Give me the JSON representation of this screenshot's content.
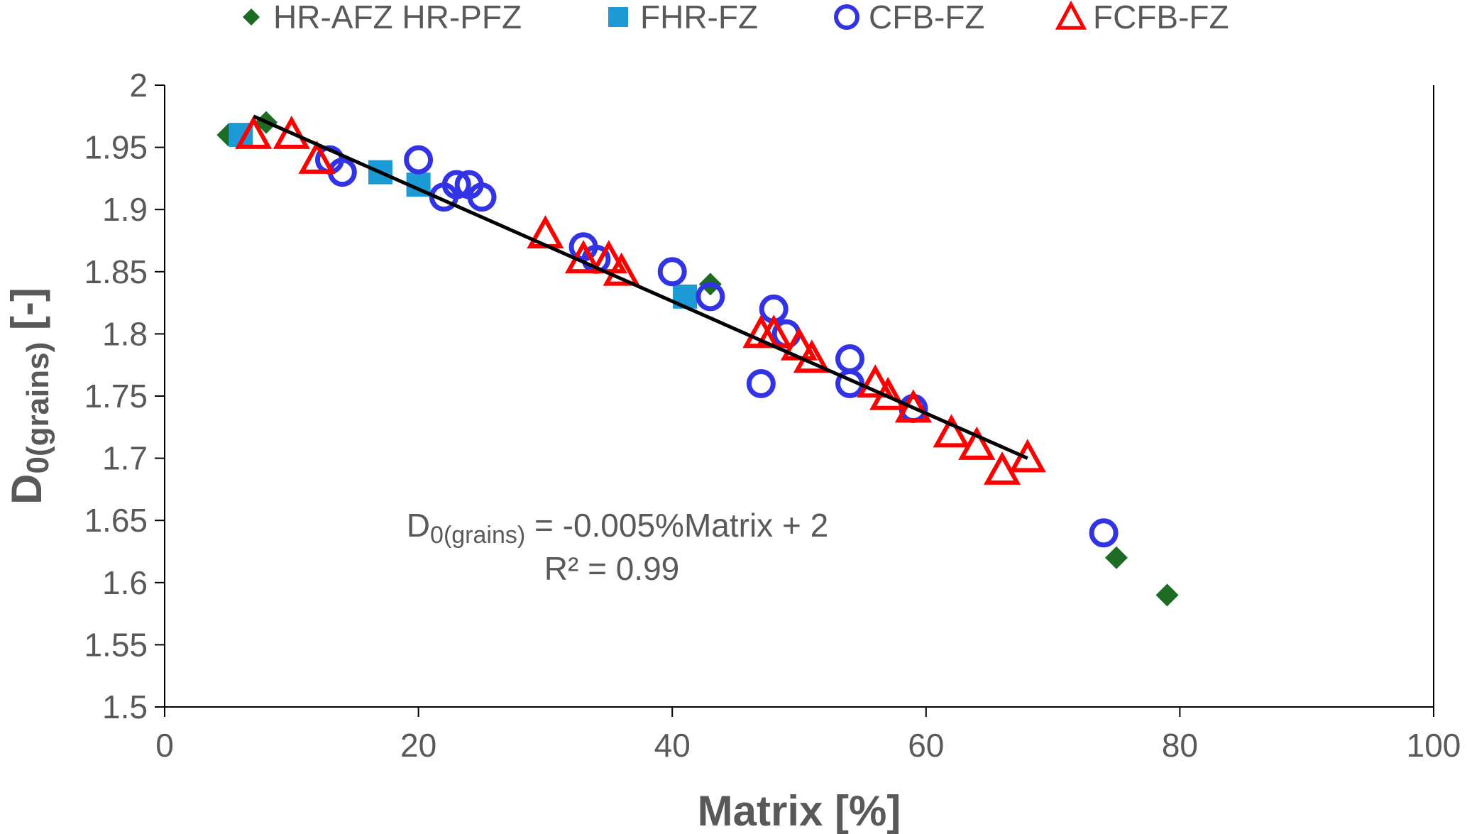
{
  "chart_data": {
    "type": "scatter",
    "title": "",
    "xlabel": "Matrix [%]",
    "ylabel": {
      "main": "D",
      "sub": "0(grains)",
      "tail": " [-]"
    },
    "xlim": [
      0,
      100
    ],
    "ylim": [
      1.5,
      2.0
    ],
    "x_ticks": [
      0,
      20,
      40,
      60,
      80,
      100
    ],
    "y_ticks": [
      1.5,
      1.55,
      1.6,
      1.65,
      1.7,
      1.75,
      1.8,
      1.85,
      1.9,
      1.95,
      2.0
    ],
    "x_tick_labels": [
      "0",
      "20",
      "40",
      "60",
      "80",
      "100"
    ],
    "y_tick_labels": [
      "1.5",
      "1.55",
      "1.6",
      "1.65",
      "1.7",
      "1.75",
      "1.8",
      "1.85",
      "1.9",
      "1.95",
      "2"
    ],
    "grid": false,
    "legend_position": "top",
    "series": [
      {
        "name": "HR-AFZ HR-PFZ",
        "marker": "diamond",
        "color": "#1e6b23",
        "points": [
          [
            5,
            1.96
          ],
          [
            8,
            1.97
          ],
          [
            43,
            1.84
          ],
          [
            75,
            1.62
          ],
          [
            79,
            1.59
          ]
        ]
      },
      {
        "name": "FHR-FZ",
        "marker": "square",
        "color": "#1b9ad6",
        "points": [
          [
            6,
            1.96
          ],
          [
            17,
            1.93
          ],
          [
            20,
            1.92
          ],
          [
            41,
            1.83
          ]
        ]
      },
      {
        "name": "CFB-FZ",
        "marker": "circle-open",
        "color": "#3333e6",
        "points": [
          [
            13,
            1.94
          ],
          [
            14,
            1.93
          ],
          [
            20,
            1.94
          ],
          [
            22,
            1.91
          ],
          [
            23,
            1.92
          ],
          [
            24,
            1.92
          ],
          [
            25,
            1.91
          ],
          [
            33,
            1.87
          ],
          [
            34,
            1.86
          ],
          [
            40,
            1.85
          ],
          [
            43,
            1.83
          ],
          [
            47,
            1.76
          ],
          [
            48,
            1.82
          ],
          [
            49,
            1.8
          ],
          [
            54,
            1.78
          ],
          [
            54,
            1.76
          ],
          [
            59,
            1.74
          ],
          [
            74,
            1.64
          ]
        ]
      },
      {
        "name": "FCFB-FZ",
        "marker": "triangle-open",
        "color": "#ff0000",
        "points": [
          [
            7,
            1.96
          ],
          [
            10,
            1.96
          ],
          [
            12,
            1.94
          ],
          [
            30,
            1.88
          ],
          [
            33,
            1.86
          ],
          [
            35,
            1.86
          ],
          [
            36,
            1.85
          ],
          [
            47,
            1.8
          ],
          [
            48,
            1.8
          ],
          [
            50,
            1.79
          ],
          [
            51,
            1.78
          ],
          [
            56,
            1.76
          ],
          [
            57,
            1.75
          ],
          [
            59,
            1.74
          ],
          [
            62,
            1.72
          ],
          [
            64,
            1.71
          ],
          [
            66,
            1.69
          ],
          [
            68,
            1.7
          ]
        ]
      }
    ],
    "trendline": {
      "x": [
        7,
        68
      ],
      "y": [
        1.975,
        1.7
      ],
      "color": "#000000"
    },
    "annotation": {
      "equation_main": "D",
      "equation_sub": "0(grains)",
      "equation_tail": " = -0.005%Matrix + 2",
      "r2": "R² = 0.99"
    }
  }
}
